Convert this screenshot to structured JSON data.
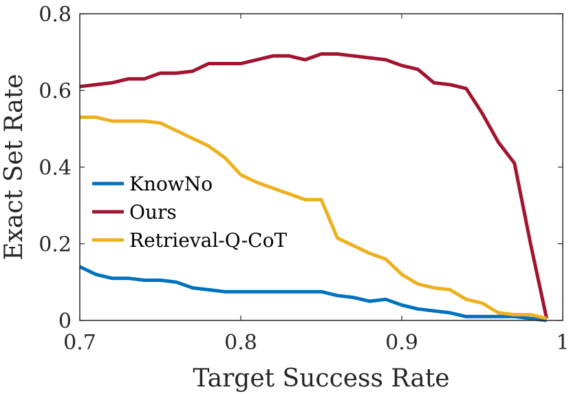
{
  "chart_data": {
    "type": "line",
    "title": "",
    "xlabel": "Target Success Rate",
    "ylabel": "Exact Set Rate",
    "xlim": [
      0.7,
      1.0
    ],
    "ylim": [
      0,
      0.8
    ],
    "xticks": [
      0.7,
      0.8,
      0.9,
      1.0
    ],
    "xtick_labels": [
      "0.7",
      "0.8",
      "0.9",
      "1"
    ],
    "yticks": [
      0,
      0.2,
      0.4,
      0.6,
      0.8
    ],
    "ytick_labels": [
      "0",
      "0.2",
      "0.4",
      "0.6",
      "0.8"
    ],
    "grid": false,
    "legend_position": "lower-left",
    "x": [
      0.7,
      0.71,
      0.72,
      0.73,
      0.74,
      0.75,
      0.76,
      0.77,
      0.78,
      0.79,
      0.8,
      0.81,
      0.82,
      0.83,
      0.84,
      0.85,
      0.86,
      0.87,
      0.88,
      0.89,
      0.9,
      0.91,
      0.92,
      0.93,
      0.94,
      0.95,
      0.96,
      0.97,
      0.98,
      0.99
    ],
    "series": [
      {
        "name": "KnowNo",
        "color": "#0072BD",
        "values": [
          0.14,
          0.12,
          0.11,
          0.11,
          0.105,
          0.105,
          0.1,
          0.085,
          0.08,
          0.075,
          0.075,
          0.075,
          0.075,
          0.075,
          0.075,
          0.075,
          0.065,
          0.06,
          0.05,
          0.055,
          0.04,
          0.03,
          0.025,
          0.02,
          0.01,
          0.01,
          0.01,
          0.01,
          0.005,
          0.0
        ]
      },
      {
        "name": "Ours",
        "color": "#A2142F",
        "values": [
          0.61,
          0.615,
          0.62,
          0.63,
          0.63,
          0.645,
          0.645,
          0.65,
          0.67,
          0.67,
          0.67,
          0.68,
          0.69,
          0.69,
          0.68,
          0.695,
          0.695,
          0.69,
          0.685,
          0.68,
          0.665,
          0.655,
          0.62,
          0.615,
          0.605,
          0.54,
          0.465,
          0.41,
          0.2,
          0.005
        ]
      },
      {
        "name": "Retrieval-Q-CoT",
        "color": "#EDB120",
        "values": [
          0.53,
          0.53,
          0.52,
          0.52,
          0.52,
          0.515,
          0.495,
          0.475,
          0.455,
          0.425,
          0.38,
          0.36,
          0.345,
          0.33,
          0.315,
          0.315,
          0.215,
          0.195,
          0.175,
          0.16,
          0.12,
          0.095,
          0.085,
          0.08,
          0.055,
          0.045,
          0.02,
          0.015,
          0.015,
          0.005
        ]
      }
    ]
  }
}
